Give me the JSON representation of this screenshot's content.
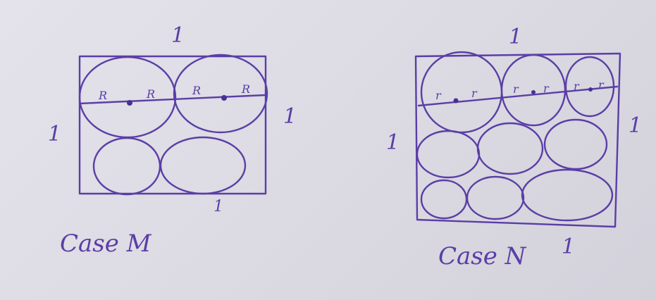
{
  "case_m": {
    "caption": "Case M",
    "side_top": "1",
    "side_left": "1",
    "side_right": "1",
    "side_bottom": "1",
    "radius_labels": [
      "R",
      "R",
      "R",
      "R"
    ]
  },
  "case_n": {
    "caption": "Case N",
    "side_top": "1",
    "side_left": "1",
    "side_right": "1",
    "side_bottom": "1",
    "radius_labels": [
      "r",
      "r",
      "r",
      "r",
      "r",
      "r"
    ]
  },
  "colors": {
    "ink": "#5a3ea6",
    "paper": "#e0dee6"
  }
}
